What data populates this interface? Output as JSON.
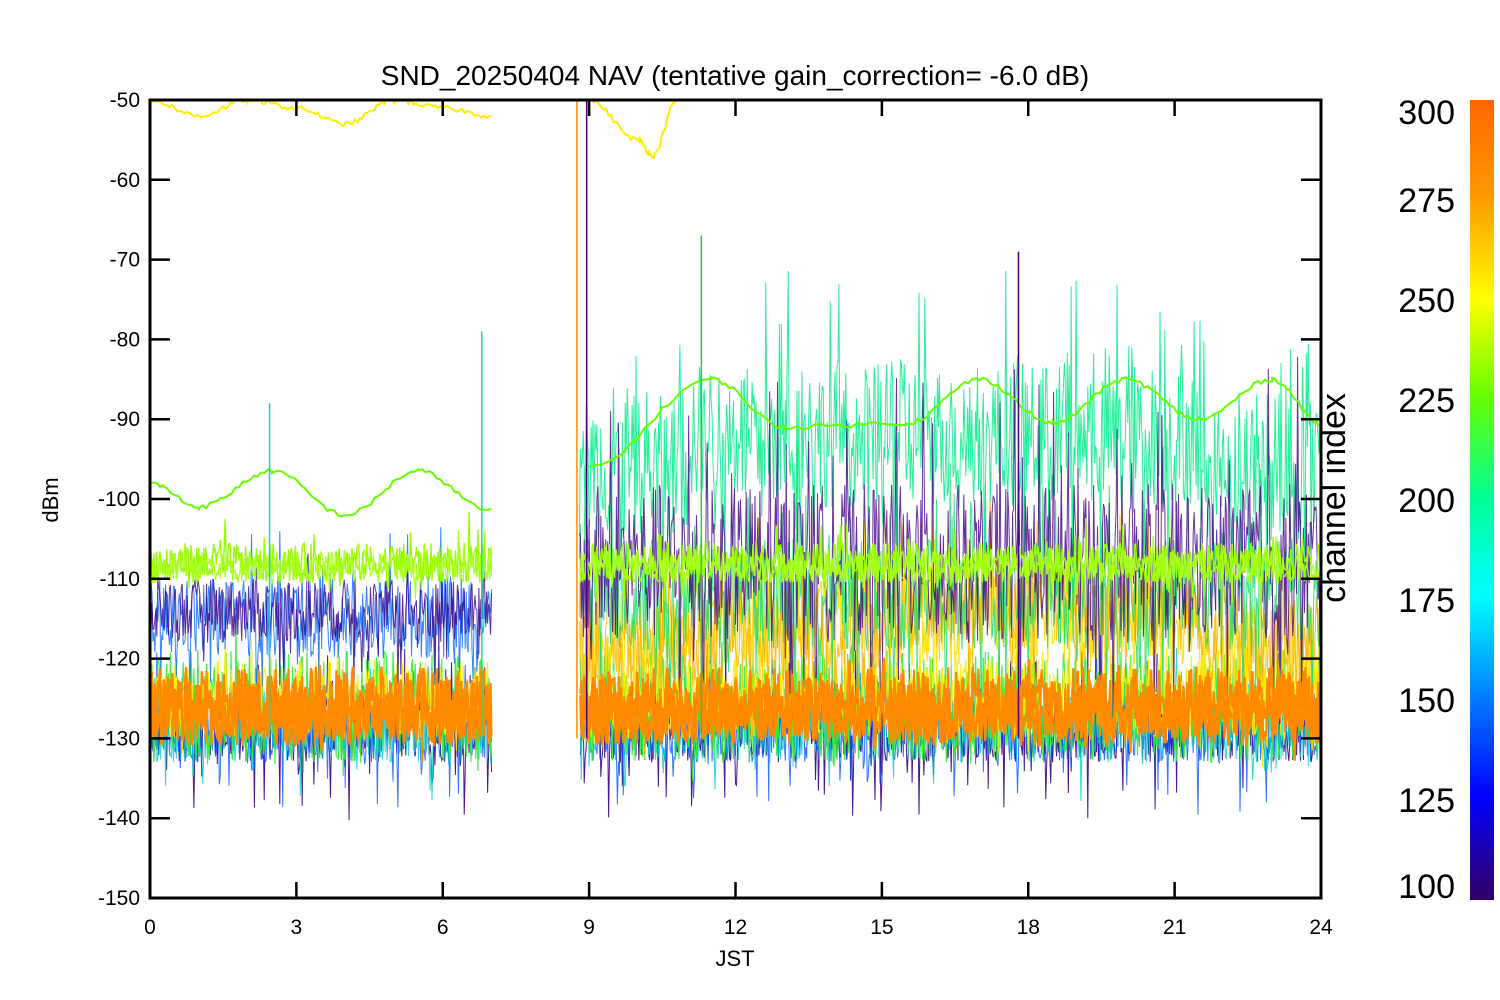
{
  "chart_data": {
    "type": "line",
    "title": "SND_20250404 NAV (tentative gain_correction= -6.0 dB)",
    "xlabel": "JST",
    "ylabel": "dBm",
    "xlim": [
      0,
      24
    ],
    "ylim": [
      -150,
      -50
    ],
    "x_ticks": [
      "0",
      "3",
      "6",
      "9",
      "12",
      "15",
      "18",
      "21",
      "24"
    ],
    "y_ticks": [
      "-50",
      "-60",
      "-70",
      "-80",
      "-90",
      "-100",
      "-110",
      "-120",
      "-130",
      "-140",
      "-150"
    ],
    "grid": false,
    "data_gap": [
      7.0,
      8.8
    ],
    "colorbar": {
      "title": "channel index",
      "range": [
        100,
        300
      ],
      "ticks": [
        "300",
        "275",
        "250",
        "225",
        "200",
        "175",
        "150",
        "125",
        "100"
      ],
      "colors": [
        "#330066",
        "#0000ff",
        "#00ffff",
        "#00ff99",
        "#66ff00",
        "#ffff00",
        "#ff9900",
        "#ff6600"
      ]
    },
    "series": [
      {
        "name": "300",
        "color": "#ff8800",
        "x": [
          0,
          3,
          6,
          7,
          8.8,
          12,
          15,
          18,
          21,
          24
        ],
        "y": [
          -126,
          -126,
          -126,
          -126,
          -126,
          -126,
          -126,
          -126,
          -126,
          -126
        ]
      },
      {
        "name": "275",
        "color": "#ffee00",
        "x": [
          0,
          1,
          2,
          3,
          4,
          5,
          6,
          7,
          9,
          10,
          10.3,
          10.8
        ],
        "y": [
          -50,
          -52,
          -50,
          -51,
          -53,
          -50,
          -51,
          -52,
          -50,
          -55,
          -57,
          -50
        ]
      },
      {
        "name": "250",
        "color": "#66ff00",
        "x": [
          0,
          1,
          2.5,
          4,
          5.5,
          7,
          9,
          11.5,
          13,
          15.5,
          17,
          18.5,
          20,
          21.5,
          23,
          24
        ],
        "y": [
          -98,
          -101,
          -96.5,
          -102,
          -96.5,
          -101.5,
          -96,
          -85,
          -91,
          -90.5,
          -85,
          -90.5,
          -85,
          -90,
          -85,
          -90.5
        ]
      },
      {
        "name": "250",
        "color": "#99ff00",
        "x": [
          0,
          3,
          6,
          7,
          9,
          12,
          15,
          18,
          21,
          24
        ],
        "y": [
          -108,
          -108,
          -108,
          -108,
          -108,
          -108,
          -108,
          -108,
          -108,
          -108
        ]
      },
      {
        "name": "200",
        "color": "#00ee88",
        "x": [
          9,
          11,
          13,
          15,
          17,
          19,
          21,
          24
        ],
        "y": [
          -80,
          -88,
          -78,
          -95,
          -80,
          -90,
          -95,
          -110
        ]
      }
    ]
  }
}
